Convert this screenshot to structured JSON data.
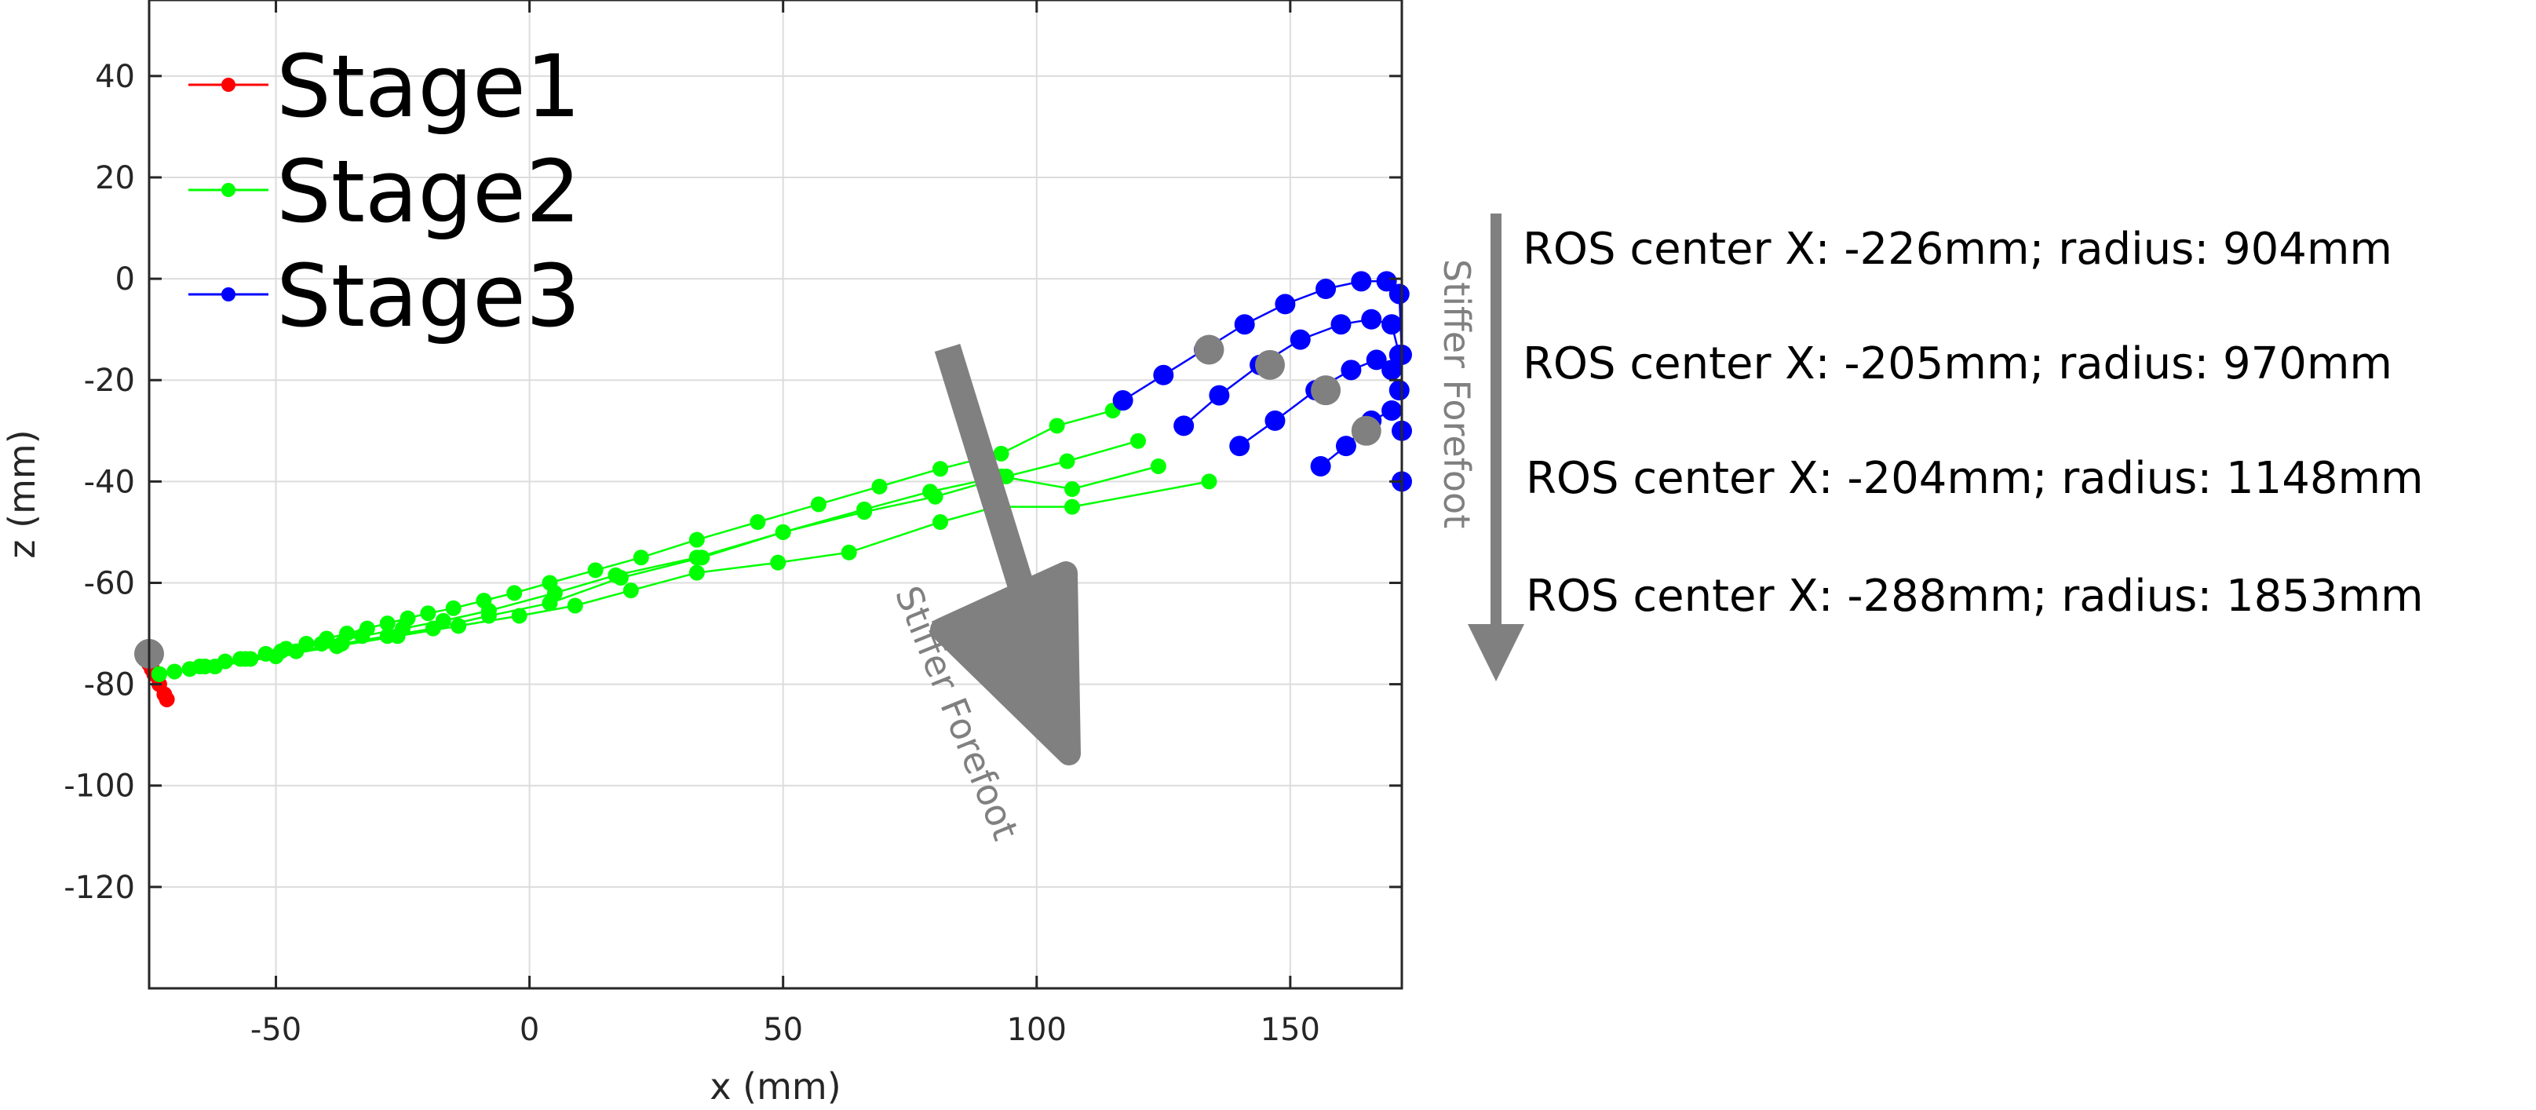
{
  "chart_data": {
    "type": "line",
    "xlabel": "x (mm)",
    "ylabel": "z (mm)",
    "xlim": [
      -75,
      172
    ],
    "ylim": [
      -140,
      55
    ],
    "xticks": [
      -50,
      0,
      50,
      100,
      150
    ],
    "yticks": [
      40,
      20,
      0,
      -20,
      -40,
      -60,
      -80,
      -100,
      -120
    ],
    "xtick_labels": [
      "-50",
      "0",
      "50",
      "100",
      "150"
    ],
    "ytick_labels": [
      "40",
      "20",
      "0",
      "-20",
      "-40",
      "-60",
      "-80",
      "-100",
      "-120"
    ],
    "grid": true,
    "legend_position": "top-left",
    "series": [
      {
        "name": "Stage1",
        "color": "#ff0000",
        "marker_size": 10,
        "curves": [
          [
            [
              -75,
              -76
            ],
            [
              -74,
              -78
            ],
            [
              -73,
              -80
            ],
            [
              -72,
              -82
            ],
            [
              -71.5,
              -83
            ]
          ],
          [
            [
              -75,
              -76
            ],
            [
              -74.5,
              -77
            ],
            [
              -74,
              -77.5
            ],
            [
              -73.5,
              -78
            ]
          ]
        ]
      },
      {
        "name": "Stage2",
        "color": "#00ff00",
        "marker_size": 10,
        "curves": [
          [
            [
              -73,
              -78
            ],
            [
              -70,
              -77.5
            ],
            [
              -67,
              -77
            ],
            [
              -64,
              -76.5
            ],
            [
              -60,
              -75.5
            ],
            [
              -56,
              -75
            ],
            [
              -52,
              -74
            ],
            [
              -48,
              -73
            ],
            [
              -44,
              -72
            ],
            [
              -40,
              -71
            ],
            [
              -36,
              -70
            ],
            [
              -32,
              -69
            ],
            [
              -28,
              -68
            ],
            [
              -24,
              -67
            ],
            [
              -20,
              -66
            ],
            [
              -15,
              -65
            ],
            [
              -9,
              -63.5
            ],
            [
              -3,
              -62
            ],
            [
              4,
              -60
            ],
            [
              13,
              -57.5
            ],
            [
              22,
              -55
            ],
            [
              33,
              -51.5
            ],
            [
              45,
              -48
            ],
            [
              57,
              -44.5
            ],
            [
              69,
              -41
            ],
            [
              81,
              -37.5
            ],
            [
              93,
              -34.5
            ],
            [
              104,
              -29
            ],
            [
              115,
              -26
            ]
          ],
          [
            [
              -73,
              -78
            ],
            [
              -65,
              -76.5
            ],
            [
              -57,
              -75
            ],
            [
              -49,
              -73.5
            ],
            [
              -41,
              -72
            ],
            [
              -33,
              -70.5
            ],
            [
              -25,
              -69
            ],
            [
              -17,
              -67.5
            ],
            [
              -8,
              -65.5
            ],
            [
              5,
              -62
            ],
            [
              17,
              -58.5
            ],
            [
              33,
              -55
            ],
            [
              50,
              -50
            ],
            [
              66,
              -46
            ],
            [
              80,
              -43
            ],
            [
              94,
              -39
            ],
            [
              106,
              -36
            ],
            [
              120,
              -32
            ]
          ],
          [
            [
              -73,
              -78
            ],
            [
              -64,
              -76.5
            ],
            [
              -55,
              -75
            ],
            [
              -46,
              -73.5
            ],
            [
              -37,
              -72
            ],
            [
              -28,
              -70.5
            ],
            [
              -19,
              -69
            ],
            [
              -8,
              -66.5
            ],
            [
              4,
              -64
            ],
            [
              18,
              -59
            ],
            [
              34,
              -55
            ],
            [
              50,
              -50
            ],
            [
              66,
              -45.5
            ],
            [
              79,
              -42
            ],
            [
              93,
              -39
            ],
            [
              107,
              -41.5
            ],
            [
              124,
              -37
            ]
          ],
          [
            [
              -73,
              -78
            ],
            [
              -62,
              -76.5
            ],
            [
              -50,
              -74.5
            ],
            [
              -38,
              -72.5
            ],
            [
              -26,
              -70.5
            ],
            [
              -14,
              -68.5
            ],
            [
              -2,
              -66.5
            ],
            [
              9,
              -64.5
            ],
            [
              20,
              -61.5
            ],
            [
              33,
              -58
            ],
            [
              49,
              -56
            ],
            [
              63,
              -54
            ],
            [
              81,
              -48
            ],
            [
              92,
              -45
            ],
            [
              107,
              -45
            ],
            [
              134,
              -40
            ]
          ]
        ]
      },
      {
        "name": "Stage3",
        "color": "#0000ff",
        "marker_size": 13,
        "curves": [
          [
            [
              117,
              -24
            ],
            [
              125,
              -19
            ],
            [
              133,
              -14
            ],
            [
              141,
              -9
            ],
            [
              149,
              -5
            ],
            [
              157,
              -2
            ],
            [
              164,
              -0.5
            ],
            [
              169,
              -0.5
            ],
            [
              171.5,
              -3
            ],
            [
              172,
              -15
            ],
            [
              172,
              -30
            ],
            [
              172,
              -40
            ]
          ],
          [
            [
              129,
              -29
            ],
            [
              136,
              -23
            ],
            [
              144,
              -17
            ],
            [
              152,
              -12
            ],
            [
              160,
              -9
            ],
            [
              166,
              -8
            ],
            [
              170,
              -9
            ],
            [
              171.5,
              -15
            ]
          ],
          [
            [
              140,
              -33
            ],
            [
              147,
              -28
            ],
            [
              155,
              -22
            ],
            [
              162,
              -18
            ],
            [
              167,
              -16
            ],
            [
              170,
              -18
            ],
            [
              171.5,
              -22
            ]
          ],
          [
            [
              156,
              -37
            ],
            [
              161,
              -33
            ],
            [
              166,
              -28
            ],
            [
              170,
              -26
            ]
          ]
        ]
      }
    ],
    "markers": [
      {
        "x": -75,
        "y": -74
      },
      {
        "x": 134,
        "y": -14
      },
      {
        "x": 146,
        "y": -17
      },
      {
        "x": 157,
        "y": -22
      },
      {
        "x": 165,
        "y": -30
      }
    ],
    "annotations": {
      "diagonal_arrow_label": "Stiffer Forefoot",
      "vertical_arrow_label": "Stiffer Forefoot",
      "ros_lines": [
        "ROS center X: -226mm; radius: 904mm",
        "ROS center X: -205mm; radius: 970mm",
        "ROS center X: -204mm; radius: 1148mm",
        "ROS center X: -288mm; radius: 1853mm"
      ]
    }
  }
}
